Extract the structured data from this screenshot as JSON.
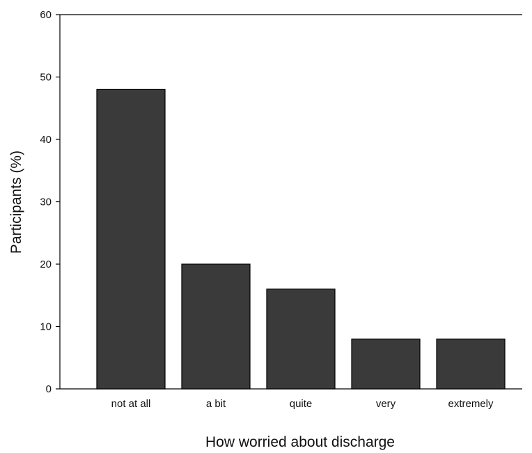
{
  "chart_data": {
    "type": "bar",
    "categories": [
      "not at all",
      "a bit",
      "quite",
      "very",
      "extremely"
    ],
    "values": [
      48,
      20,
      16,
      8,
      8
    ],
    "title": "",
    "xlabel": "How worried about discharge",
    "ylabel": "Participants (%)",
    "ylim": [
      0,
      60
    ],
    "yticks": [
      0,
      10,
      20,
      30,
      40,
      50,
      60
    ],
    "grid": false,
    "bar_color": "#3a3a3a"
  }
}
